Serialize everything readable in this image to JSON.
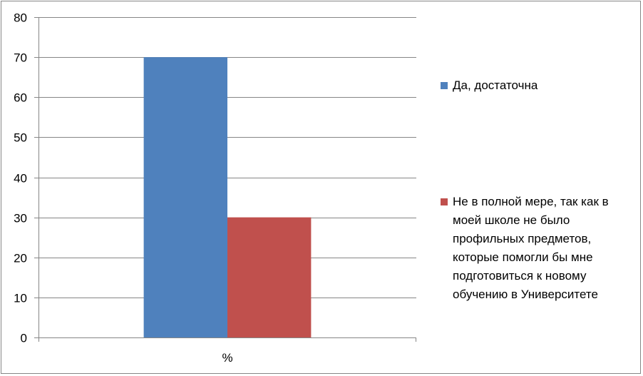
{
  "chart_data": {
    "type": "bar",
    "categories": [
      "%"
    ],
    "series": [
      {
        "name": "Да, достаточна",
        "values": [
          70
        ],
        "color": "#4f81bd"
      },
      {
        "name": "Не в полной мере, так как в моей школе не было профильных предметов, которые помогли бы мне подготовиться к новому обучению в Университете",
        "values": [
          30
        ],
        "color": "#c0504d"
      }
    ],
    "title": "",
    "xlabel": "",
    "ylabel": "",
    "ylim": [
      0,
      80
    ],
    "yticks": [
      0,
      10,
      20,
      30,
      40,
      50,
      60,
      70,
      80
    ],
    "grid": true,
    "legend": "right"
  }
}
